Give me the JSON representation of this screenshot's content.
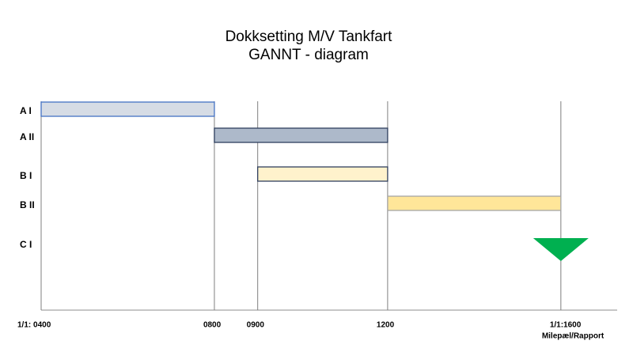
{
  "chart_data": {
    "type": "gantt",
    "title": "Dokksetting M/V Tankfart",
    "subtitle": "GANNT - diagram",
    "tasks": [
      {
        "name": "A I",
        "start": 4,
        "end": 8,
        "color": "#d6dce5",
        "border": "#4472c4"
      },
      {
        "name": "A II",
        "start": 8,
        "end": 12,
        "color": "#adb9ca",
        "border": "#2f3f5f"
      },
      {
        "name": "B I",
        "start": 9,
        "end": 12,
        "color": "#fff2cc",
        "border": "#2f3f5f"
      },
      {
        "name": "B II",
        "start": 12,
        "end": 16,
        "color": "#ffe699",
        "border": "#a6a6a6"
      }
    ],
    "milestones": [
      {
        "name": "C I",
        "at": 16,
        "color": "#00b050"
      }
    ],
    "annotation": "Milepæl/Rapport",
    "xlim": [
      4,
      17.3
    ],
    "xticks": [
      {
        "value": 4,
        "label": "1/1: 0400"
      },
      {
        "value": 8,
        "label": "0800"
      },
      {
        "value": 9,
        "label": "0900"
      },
      {
        "value": 12,
        "label": "1200"
      },
      {
        "value": 16,
        "label": "1/1:1600"
      }
    ],
    "grid": true
  }
}
